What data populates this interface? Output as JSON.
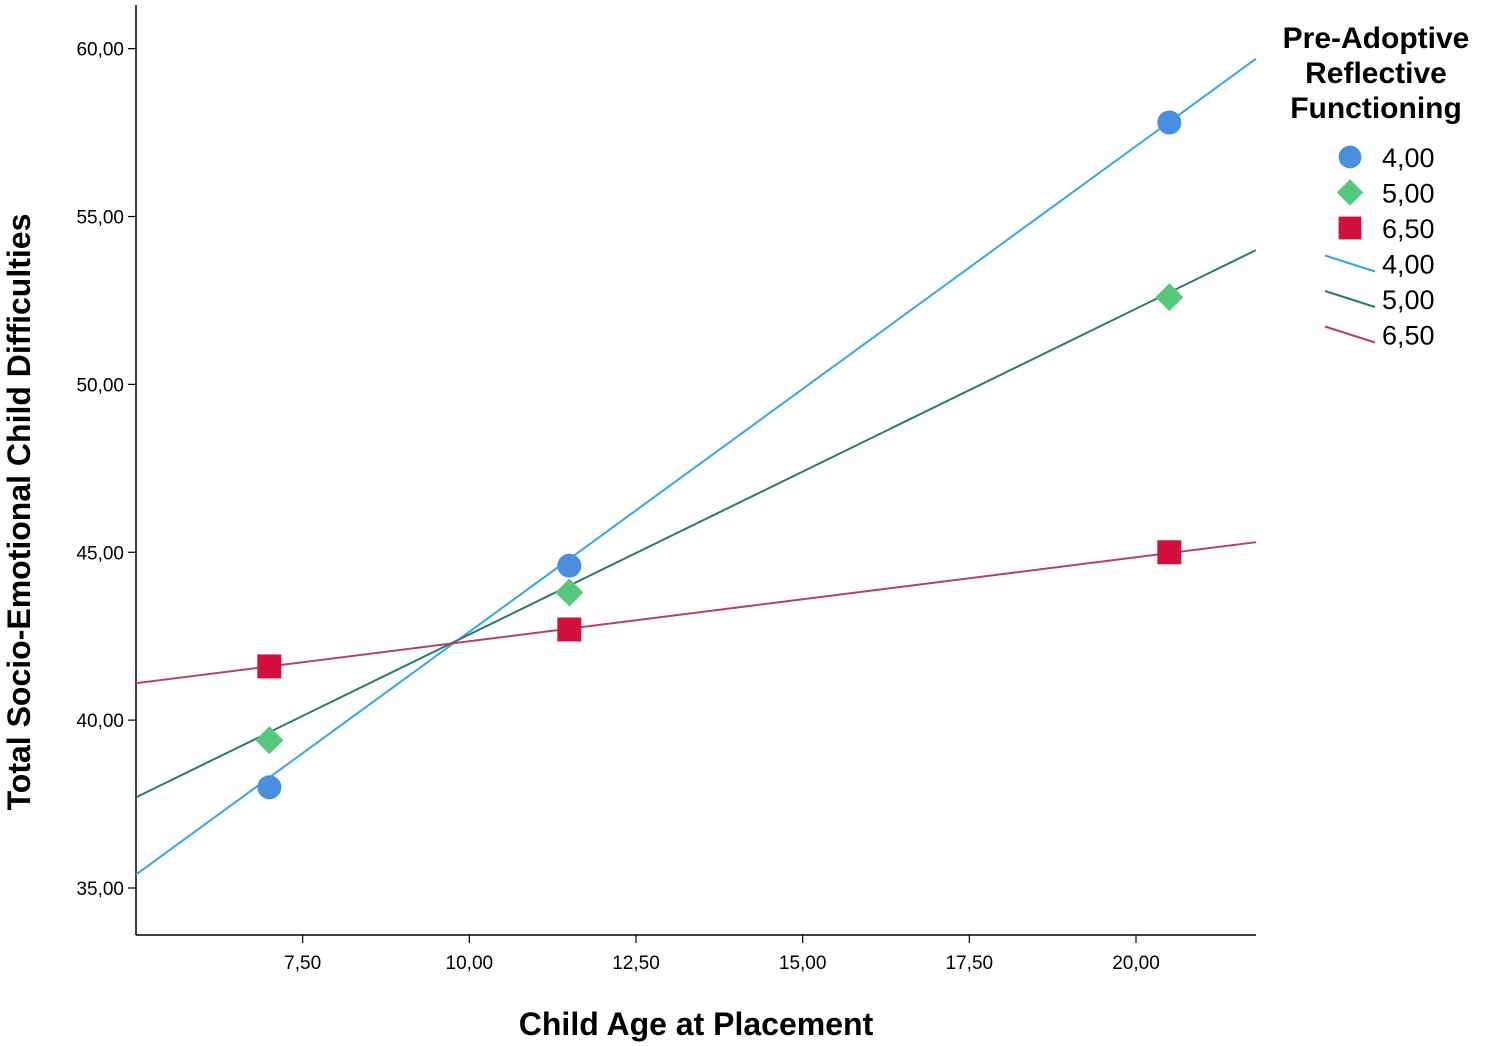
{
  "chart_data": {
    "type": "scatter",
    "xlabel": "Child Age at Placement",
    "ylabel": "Total Socio-Emotional Child Difficulties",
    "xlim": [
      5.0,
      21.8
    ],
    "ylim": [
      33.6,
      61.3
    ],
    "xticks": [
      7.5,
      10.0,
      12.5,
      15.0,
      17.5,
      20.0
    ],
    "xtick_labels": [
      "7,50",
      "10,00",
      "12,50",
      "15,00",
      "17,50",
      "20,00"
    ],
    "yticks": [
      35.0,
      40.0,
      45.0,
      50.0,
      55.0,
      60.0
    ],
    "ytick_labels": [
      "35,00",
      "40,00",
      "45,00",
      "50,00",
      "55,00",
      "60,00"
    ],
    "grid": false,
    "legend": {
      "title": "Pre-Adoptive Reflective Functioning",
      "title_lines": [
        "Pre-Adoptive",
        "Reflective",
        "Functioning"
      ],
      "placement": "right"
    },
    "series": [
      {
        "name": "4,00",
        "marker": "circle",
        "color": "#4a8fdf",
        "x": [
          7.0,
          11.5,
          20.5
        ],
        "y": [
          38.0,
          44.6,
          57.8
        ]
      },
      {
        "name": "5,00",
        "marker": "diamond",
        "color": "#56c97e",
        "x": [
          7.0,
          11.5,
          20.5
        ],
        "y": [
          39.4,
          43.8,
          52.6
        ]
      },
      {
        "name": "6,50",
        "marker": "square",
        "color": "#d3103c",
        "x": [
          7.0,
          11.5,
          20.5
        ],
        "y": [
          41.6,
          42.7,
          45.0
        ]
      }
    ],
    "fit_lines": [
      {
        "name": "4,00",
        "color": "#35a6e8",
        "x": [
          5.0,
          21.8
        ],
        "y": [
          35.4,
          59.7
        ]
      },
      {
        "name": "5,00",
        "color": "#2a7a6e",
        "x": [
          5.0,
          21.8
        ],
        "y": [
          37.7,
          54.0
        ]
      },
      {
        "name": "6,50",
        "color": "#b53e6a",
        "x": [
          5.0,
          21.8
        ],
        "y": [
          41.1,
          45.3
        ]
      }
    ]
  }
}
